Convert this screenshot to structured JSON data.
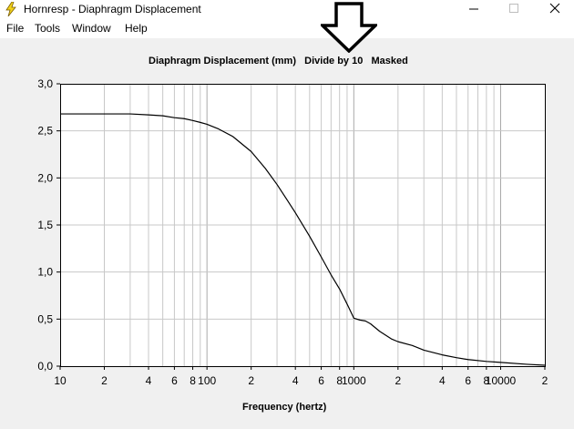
{
  "window": {
    "title": "Hornresp - Diaphragm Displacement",
    "icon": "lightning-bolt-icon"
  },
  "menu": {
    "items": [
      "File",
      "Tools",
      "Window",
      "Help"
    ]
  },
  "chart_title": "Diaphragm Displacement (mm)   Divide by 10   Masked",
  "chart_data": {
    "type": "line",
    "title": "Diaphragm Displacement (mm)   Divide by 10   Masked",
    "xlabel": "Frequency (hertz)",
    "ylabel": "",
    "xscale": "log",
    "xlim": [
      10,
      20000
    ],
    "ylim": [
      0,
      3.0
    ],
    "grid": true,
    "x_tick_labels": [
      {
        "value": 10,
        "label": "10"
      },
      {
        "value": 20,
        "label": "2"
      },
      {
        "value": 40,
        "label": "4"
      },
      {
        "value": 60,
        "label": "6"
      },
      {
        "value": 80,
        "label": "8"
      },
      {
        "value": 100,
        "label": "100"
      },
      {
        "value": 200,
        "label": "2"
      },
      {
        "value": 400,
        "label": "4"
      },
      {
        "value": 600,
        "label": "6"
      },
      {
        "value": 800,
        "label": "8"
      },
      {
        "value": 1000,
        "label": "1000"
      },
      {
        "value": 2000,
        "label": "2"
      },
      {
        "value": 4000,
        "label": "4"
      },
      {
        "value": 6000,
        "label": "6"
      },
      {
        "value": 8000,
        "label": "8"
      },
      {
        "value": 10000,
        "label": "10000"
      },
      {
        "value": 20000,
        "label": "2"
      }
    ],
    "y_tick_labels": [
      {
        "value": 0.0,
        "label": "0,0"
      },
      {
        "value": 0.5,
        "label": "0,5"
      },
      {
        "value": 1.0,
        "label": "1,0"
      },
      {
        "value": 1.5,
        "label": "1,5"
      },
      {
        "value": 2.0,
        "label": "2,0"
      },
      {
        "value": 2.5,
        "label": "2,5"
      },
      {
        "value": 3.0,
        "label": "3,0"
      }
    ],
    "series": [
      {
        "color": "#000000",
        "x": [
          10,
          20,
          30,
          40,
          50,
          60,
          70,
          80,
          90,
          100,
          120,
          150,
          200,
          250,
          300,
          350,
          400,
          500,
          600,
          700,
          800,
          900,
          1000,
          1100,
          1200,
          1300,
          1500,
          1800,
          2000,
          2500,
          3000,
          4000,
          5000,
          6000,
          8000,
          10000,
          15000,
          20000
        ],
        "y": [
          2.68,
          2.68,
          2.68,
          2.67,
          2.66,
          2.64,
          2.63,
          2.61,
          2.59,
          2.57,
          2.52,
          2.44,
          2.28,
          2.1,
          1.93,
          1.77,
          1.63,
          1.38,
          1.16,
          0.97,
          0.82,
          0.66,
          0.51,
          0.49,
          0.48,
          0.45,
          0.37,
          0.29,
          0.26,
          0.22,
          0.17,
          0.12,
          0.09,
          0.07,
          0.05,
          0.04,
          0.02,
          0.01
        ]
      }
    ]
  },
  "colors": {
    "grid": "#c8c8c8",
    "major_grid": "#a8a8a8",
    "line": "#000000",
    "background": "#f0f0f0",
    "plot_bg": "#ffffff"
  }
}
